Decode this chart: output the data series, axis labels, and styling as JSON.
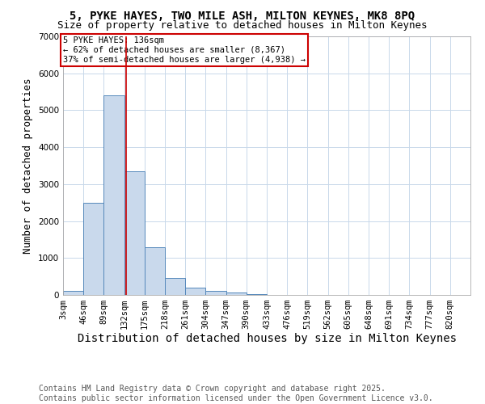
{
  "title1": "5, PYKE HAYES, TWO MILE ASH, MILTON KEYNES, MK8 8PQ",
  "title2": "Size of property relative to detached houses in Milton Keynes",
  "xlabel": "Distribution of detached houses by size in Milton Keynes",
  "ylabel": "Number of detached properties",
  "footer1": "Contains HM Land Registry data © Crown copyright and database right 2025.",
  "footer2": "Contains public sector information licensed under the Open Government Licence v3.0.",
  "bin_edges": [
    3,
    46,
    89,
    132,
    175,
    218,
    261,
    304,
    347,
    390,
    433,
    476,
    519,
    562,
    605,
    648,
    691,
    734,
    777,
    820,
    863
  ],
  "bar_heights": [
    100,
    2500,
    5400,
    3350,
    1300,
    450,
    200,
    100,
    60,
    30,
    5,
    2,
    1,
    0,
    0,
    0,
    0,
    0,
    0,
    0
  ],
  "bar_color": "#c9d9ec",
  "bar_edge_color": "#5588bb",
  "property_size": 136,
  "vline_color": "#cc0000",
  "annotation_line1": "5 PYKE HAYES: 136sqm",
  "annotation_line2": "← 62% of detached houses are smaller (8,367)",
  "annotation_line3": "37% of semi-detached houses are larger (4,938) →",
  "annotation_box_color": "#ffffff",
  "annotation_box_edge_color": "#cc0000",
  "ylim": [
    0,
    7000
  ],
  "yticks": [
    0,
    1000,
    2000,
    3000,
    4000,
    5000,
    6000,
    7000
  ],
  "bg_color": "#ffffff",
  "grid_color": "#c8d8ea",
  "title_fontsize": 10,
  "subtitle_fontsize": 9,
  "axis_label_fontsize": 9,
  "tick_label_fontsize": 7.5,
  "footer_fontsize": 7
}
